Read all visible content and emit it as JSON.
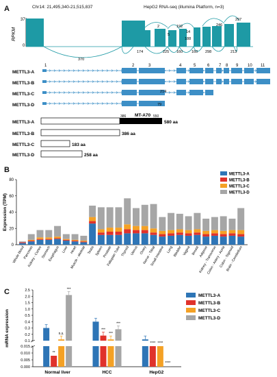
{
  "panelA": {
    "letter": "A",
    "coord": "Chr14: 21,495,340-21,515,837",
    "dataset": "HepG2  RNA-seq (illumina Platform, n=3)",
    "ylabel": "RPKM",
    "ytop": "37",
    "ybottom": "0",
    "junctions": [
      "2",
      "192",
      "5",
      "188",
      "14",
      "246",
      "297",
      "370",
      "174",
      "225",
      "160",
      "160",
      "298",
      "213",
      "214",
      "79"
    ],
    "exon_numbers": [
      "1",
      "2",
      "3",
      "4",
      "5",
      "6",
      "7",
      "8",
      "9",
      "10",
      "11"
    ],
    "isoforms": [
      "METTL3-A",
      "METTL3-B",
      "METTL3-C",
      "METTL3-D"
    ],
    "protein_domain": "MT-A70",
    "domain_start": "386",
    "domain_end": "550",
    "protein_lengths": [
      "580 aa",
      "386 aa",
      "183 aa",
      "258 aa"
    ]
  },
  "panelB": {
    "letter": "B",
    "ylabel": "Expression (TPM)",
    "legend": [
      "METTL3-A",
      "METTL3-B",
      "METTL3-C",
      "METTL3-D"
    ]
  },
  "panelC": {
    "letter": "C",
    "ylabel": "mRNA expression",
    "legend": [
      "METTL3-A",
      "METTL3-B",
      "METTL3-C",
      "METTL3-D"
    ]
  },
  "colors": {
    "A": "#2e75b6",
    "B": "#e0322b",
    "C": "#f4a125",
    "D": "#a6a6a6",
    "track": "#1e9aa5",
    "exon": "#3d8fc6"
  },
  "chart_data": [
    {
      "type": "bar",
      "stacked": true,
      "categories": [
        "Whole blood",
        "Pancreas",
        "Kidney - Cortex",
        "Stomach",
        "Esophagus",
        "Liver",
        "Heart",
        "Muscle - skeletal",
        "Testis",
        "Spleen",
        "Prostate",
        "Fallopian Tube",
        "Thyroid",
        "Uterus",
        "Ovary",
        "Nerve - Tibial",
        "Small Intestine",
        "Lung",
        "Bladder",
        "Vagina",
        "Breast",
        "Adipose",
        "Kidney - Transverse",
        "Colon - Artery - Aorta",
        "Colon - Sigmoid",
        "Brain - Cerebellum"
      ],
      "ylabel": "Expression (TPM)",
      "ylim": [
        0,
        80
      ],
      "yticks": [
        0,
        20,
        40,
        60,
        80
      ],
      "series": [
        {
          "name": "METTL3-A",
          "values": [
            2,
            4,
            6,
            6,
            7,
            5,
            4,
            3,
            26,
            12,
            12,
            12,
            14,
            14,
            14,
            12,
            10,
            11,
            12,
            11,
            12,
            10,
            11,
            10,
            11,
            10
          ]
        },
        {
          "name": "METTL3-B",
          "values": [
            1,
            1,
            1,
            1,
            1,
            1,
            1,
            1,
            3,
            3,
            4,
            4,
            5,
            4,
            4,
            3,
            3,
            3,
            3,
            3,
            3,
            3,
            3,
            3,
            3,
            3
          ]
        },
        {
          "name": "METTL3-C",
          "values": [
            0,
            1,
            2,
            2,
            2,
            1,
            1,
            1,
            5,
            4,
            5,
            5,
            6,
            5,
            5,
            5,
            4,
            4,
            4,
            4,
            4,
            4,
            4,
            4,
            4,
            5
          ]
        },
        {
          "name": "METTL3-D",
          "values": [
            1,
            7,
            9,
            9,
            13,
            6,
            7,
            6,
            14,
            27,
            25,
            25,
            32,
            22,
            26,
            30,
            17,
            21,
            19,
            17,
            20,
            15,
            16,
            18,
            14,
            27
          ]
        }
      ]
    },
    {
      "type": "bar",
      "categories": [
        "Normal liver",
        "HCC",
        "HepG2"
      ],
      "ylabel": "mRNA expression",
      "broken_axis": true,
      "upper_yticks": [
        "0.1",
        "0.2",
        "0.3",
        "0.4",
        "0.5",
        "1.0",
        "1.5",
        "2.0",
        "2.5"
      ],
      "lower_yticks": [
        "0.000",
        "0.005",
        "0.010",
        "0.015"
      ],
      "series": [
        {
          "name": "METTL3-A",
          "values": [
            0.3,
            0.4,
            0.12
          ]
        },
        {
          "name": "METTL3-B",
          "values": [
            0.008,
            0.18,
            0.1
          ]
        },
        {
          "name": "METTL3-C",
          "values": [
            0.12,
            0.12,
            0.1
          ]
        },
        {
          "name": "METTL3-D",
          "values": [
            2.1,
            0.28,
            0.0005
          ]
        }
      ],
      "significance": [
        [
          "",
          "**",
          "n.s.",
          "***"
        ],
        [
          "",
          "***",
          "***",
          "***"
        ],
        [
          "",
          "****",
          "****",
          "****"
        ]
      ]
    }
  ]
}
